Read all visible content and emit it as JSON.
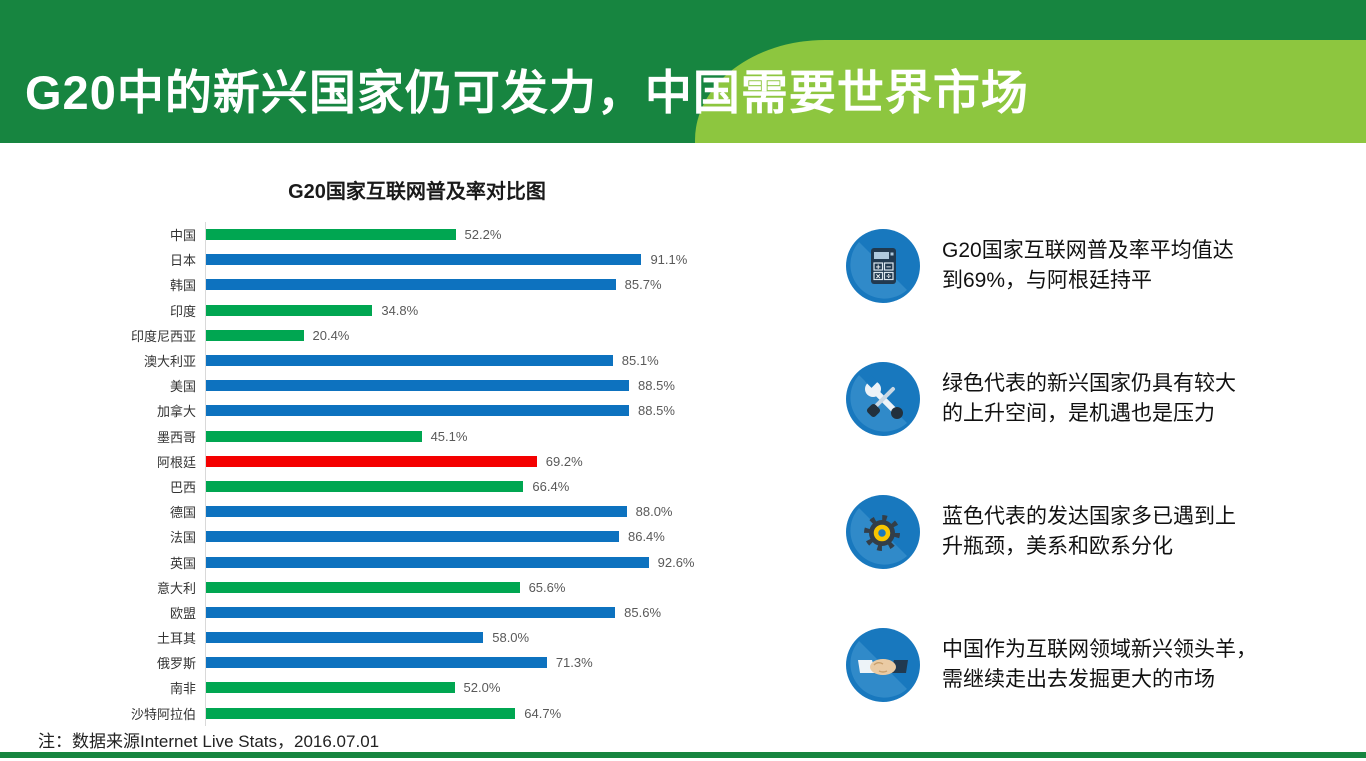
{
  "header": {
    "title": "G20中的新兴国家仍可发力，中国需要世界市场",
    "colors": {
      "dark_green": "#178540",
      "light_green": "#8DC63F"
    }
  },
  "chart_data": {
    "type": "bar",
    "orientation": "horizontal",
    "title": "G20国家互联网普及率对比图",
    "xlabel": "",
    "ylabel": "",
    "unit": "%",
    "xlim": [
      0,
      100
    ],
    "grid": false,
    "legend": false,
    "categories": [
      "中国",
      "日本",
      "韩国",
      "印度",
      "印度尼西亚",
      "澳大利亚",
      "美国",
      "加拿大",
      "墨西哥",
      "阿根廷",
      "巴西",
      "德国",
      "法国",
      "英国",
      "意大利",
      "欧盟",
      "土耳其",
      "俄罗斯",
      "南非",
      "沙特阿拉伯"
    ],
    "values": [
      52.2,
      91.1,
      85.7,
      34.8,
      20.4,
      85.1,
      88.5,
      88.5,
      45.1,
      69.2,
      66.4,
      88.0,
      86.4,
      92.6,
      65.6,
      85.6,
      58.0,
      71.3,
      52.0,
      64.7
    ],
    "value_labels": [
      "52.2%",
      "91.1%",
      "85.7%",
      "34.8%",
      "20.4%",
      "85.1%",
      "88.5%",
      "88.5%",
      "45.1%",
      "69.2%",
      "66.4%",
      "88.0%",
      "86.4%",
      "92.6%",
      "65.6%",
      "85.6%",
      "58.0%",
      "71.3%",
      "52.0%",
      "64.7%"
    ],
    "bar_colors": [
      "green",
      "blue",
      "blue",
      "green",
      "green",
      "blue",
      "blue",
      "blue",
      "green",
      "red",
      "green",
      "blue",
      "blue",
      "blue",
      "green",
      "blue",
      "blue",
      "blue",
      "green",
      "green"
    ],
    "palette": {
      "green": "#00A651",
      "blue": "#0D72BF",
      "red": "#F40000"
    }
  },
  "cards": [
    {
      "icon": "calculator-icon",
      "lines": [
        "G20国家互联网普及率平均值达",
        "到69%，与阿根廷持平"
      ]
    },
    {
      "icon": "tools-icon",
      "lines": [
        "绿色代表的新兴国家仍具有较大",
        "的上升空间，是机遇也是压力"
      ]
    },
    {
      "icon": "gear-icon",
      "lines": [
        "蓝色代表的发达国家多已遇到上",
        "升瓶颈，美系和欧系分化"
      ]
    },
    {
      "icon": "handshake-icon",
      "lines": [
        "中国作为互联网领域新兴领头羊，",
        "需继续走出去发掘更大的市场"
      ]
    }
  ],
  "footnote": "注：数据来源Internet Live Stats，2016.07.01",
  "icon_circle_color": "#1878BE"
}
